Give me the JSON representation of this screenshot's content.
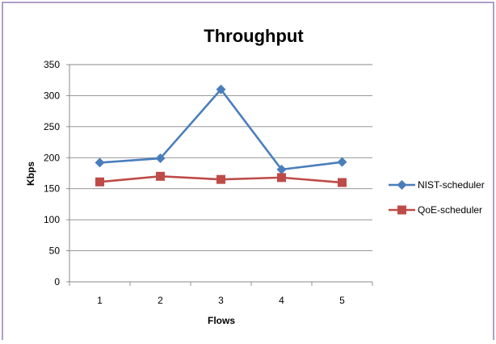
{
  "chart_data": {
    "type": "line",
    "title": "Throughput",
    "xlabel": "Flows",
    "ylabel": "Kbps",
    "categories": [
      "1",
      "2",
      "3",
      "4",
      "5"
    ],
    "ylim": [
      0,
      350
    ],
    "yticks": [
      0,
      50,
      100,
      150,
      200,
      250,
      300,
      350
    ],
    "grid": true,
    "legend": "right",
    "series": [
      {
        "name": "NIST-scheduler",
        "values": [
          192,
          199,
          310,
          181,
          193
        ],
        "color": "#4a7ebb",
        "marker": "diamond"
      },
      {
        "name": "QoE-scheduler",
        "values": [
          161,
          170,
          165,
          168,
          160
        ],
        "color": "#be4b48",
        "marker": "square"
      }
    ]
  }
}
